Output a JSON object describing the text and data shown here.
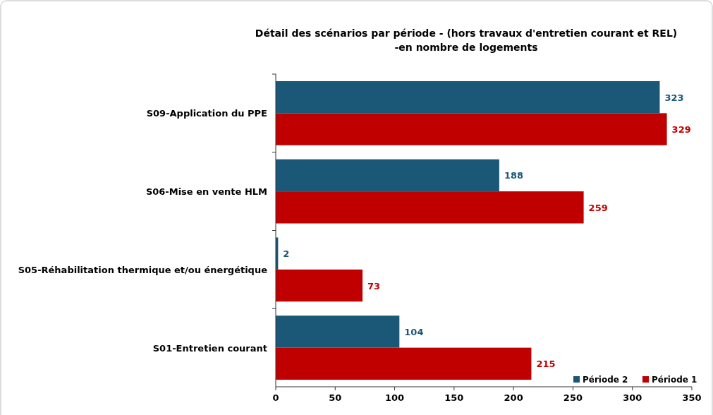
{
  "chart_data": {
    "type": "bar",
    "orientation": "horizontal",
    "title": "Détail des scénarios par période - (hors travaux d'entretien courant et REL)",
    "subtitle": "-en nombre de logements",
    "categories": [
      "S09-Application du PPE",
      "S06-Mise en vente HLM",
      "S05-Réhabilitation thermique et/ou énergétique",
      "S01-Entretien courant"
    ],
    "series": [
      {
        "name": "Période 2",
        "color": "#1b5878",
        "values": [
          323,
          188,
          2,
          104
        ]
      },
      {
        "name": "Période 1",
        "color": "#c00000",
        "values": [
          329,
          259,
          73,
          215
        ]
      }
    ],
    "xlim": [
      0,
      350
    ],
    "xticks": [
      0,
      50,
      100,
      150,
      200,
      250,
      300,
      350
    ],
    "data_labels": true,
    "legend": "bottom right",
    "grid": false
  }
}
